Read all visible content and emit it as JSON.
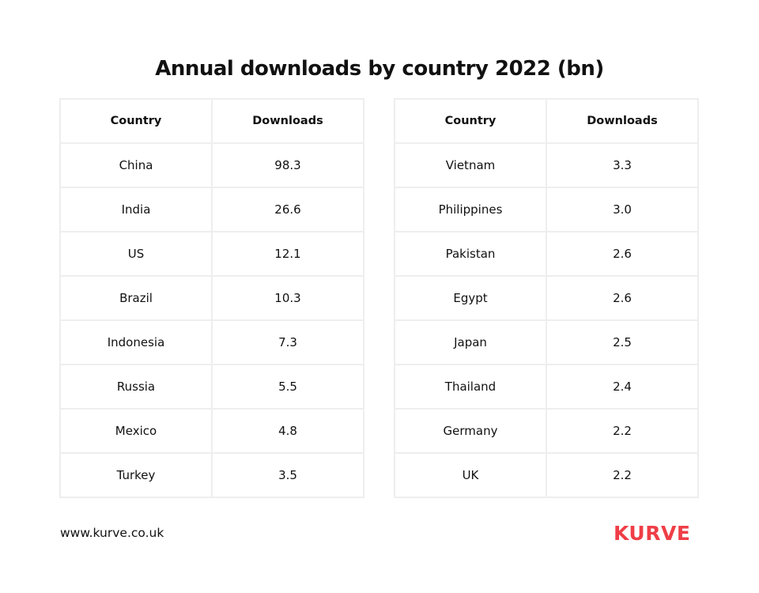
{
  "title": "Annual downloads by country 2022 (bn)",
  "headers": [
    "Country",
    "Downloads"
  ],
  "left_table": [
    [
      "China",
      "98.3"
    ],
    [
      "India",
      "26.6"
    ],
    [
      "US",
      "12.1"
    ],
    [
      "Brazil",
      "10.3"
    ],
    [
      "Indonesia",
      "7.3"
    ],
    [
      "Russia",
      "5.5"
    ],
    [
      "Mexico",
      "4.8"
    ],
    [
      "Turkey",
      "3.5"
    ]
  ],
  "right_table": [
    [
      "Vietnam",
      "3.3"
    ],
    [
      "Philippines",
      "3.0"
    ],
    [
      "Pakistan",
      "2.6"
    ],
    [
      "Egypt",
      "2.6"
    ],
    [
      "Japan",
      "2.5"
    ],
    [
      "Thailand",
      "2.4"
    ],
    [
      "Germany",
      "2.2"
    ],
    [
      "UK",
      "2.2"
    ]
  ],
  "footer": {
    "url": "www.kurve.co.uk",
    "logo": "KURVE"
  },
  "colors": {
    "brand": "#ef3e47",
    "border": "#eeeeee"
  }
}
